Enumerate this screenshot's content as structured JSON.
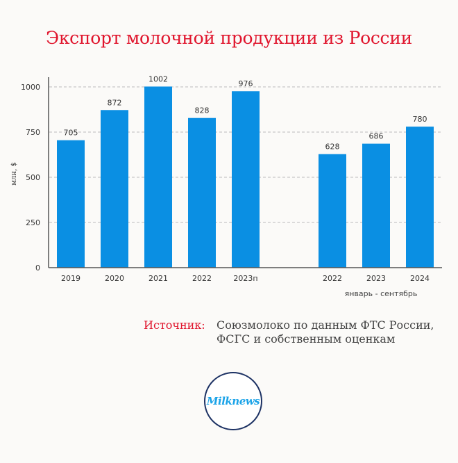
{
  "title": "Экспорт молочной продукции из России",
  "source": {
    "label": "Источник:",
    "line1": "Союзмолоко по данным ФТС России,",
    "line2": "ФСГС и собственным оценкам"
  },
  "logo": {
    "text": "Milknews"
  },
  "colors": {
    "bar": "#0a8fe3",
    "title": "#e0152d",
    "logo_ring": "#1d3264"
  },
  "chart_data": {
    "type": "bar",
    "title": "Экспорт молочной продукции из России",
    "ylabel": "млн, $",
    "xlabel": "",
    "ylim": [
      0,
      1000
    ],
    "yticks": [
      0,
      250,
      500,
      750,
      1000
    ],
    "grid": true,
    "groups": [
      {
        "name": "",
        "categories": [
          "2019",
          "2020",
          "2021",
          "2022",
          "2023п"
        ],
        "values": [
          705,
          872,
          1002,
          828,
          976
        ]
      },
      {
        "name": "январь - сентябрь",
        "categories": [
          "2022",
          "2023",
          "2024"
        ],
        "values": [
          628,
          686,
          780
        ]
      }
    ]
  }
}
